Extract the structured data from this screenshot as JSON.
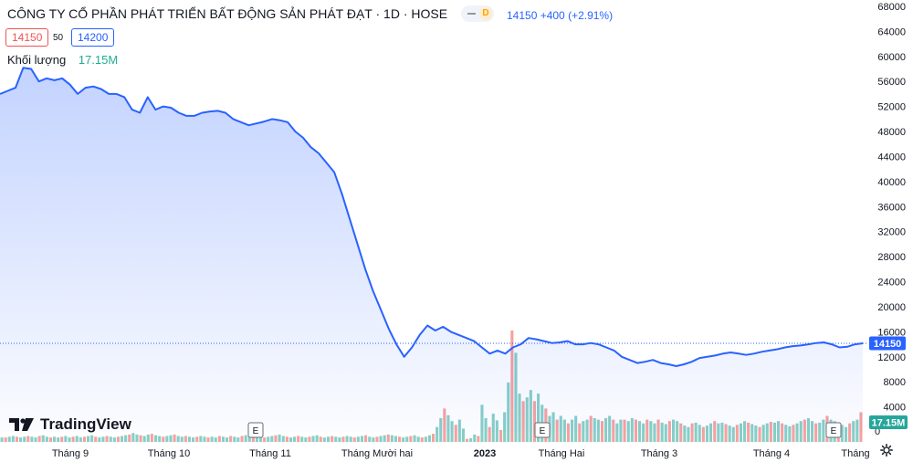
{
  "header": {
    "title": "CÔNG TY CỔ PHẦN PHÁT TRIỂN BẤT ĐỘNG SẢN PHÁT ĐẠT · 1D · HOSE",
    "interval_badge": "D",
    "quote": "14150 +400 (+2.91%)"
  },
  "bid_price": "14150",
  "spread": "50",
  "ask_price": "14200",
  "volume_legend": {
    "label": "Khối lượng",
    "value": "17.15M"
  },
  "logo_text": "TradingView",
  "price_tag": "14150",
  "volume_tag": "17.15M",
  "colors": {
    "line": "#2962ff",
    "up": "#26a69a",
    "down": "#ef5350",
    "tag": "#2962ff",
    "vol_tag": "#26a69a"
  },
  "chart_data": [
    {
      "type": "area",
      "x_ticks": [
        "Tháng 9",
        "Tháng 10",
        "Tháng 11",
        "Tháng Mười hai",
        "2023",
        "Tháng Hai",
        "Tháng 3",
        "Tháng 4",
        "Tháng"
      ],
      "y_ticks": [
        "68000",
        "64000",
        "60000",
        "56000",
        "52000",
        "48000",
        "44000",
        "40000",
        "36000",
        "32000",
        "28000",
        "24000",
        "20000",
        "16000",
        "12000",
        "8000",
        "4000"
      ],
      "ylim": [
        0,
        68000
      ],
      "last_value": 14150,
      "values": [
        54000,
        54500,
        55000,
        58200,
        58000,
        56000,
        56500,
        56200,
        56500,
        55500,
        54000,
        55000,
        55200,
        54800,
        54000,
        54000,
        53500,
        51500,
        51000,
        53500,
        51500,
        52000,
        51800,
        51000,
        50500,
        50500,
        51000,
        51200,
        51300,
        51000,
        50000,
        49500,
        49000,
        49300,
        49600,
        50000,
        49800,
        49500,
        48000,
        47000,
        45500,
        44500,
        43000,
        41500,
        38000,
        34000,
        30000,
        26000,
        22500,
        19500,
        16500,
        14000,
        12000,
        13500,
        15500,
        17000,
        16200,
        16800,
        16000,
        15500,
        15000,
        14500,
        13500,
        12500,
        13000,
        12500,
        13500,
        14000,
        15000,
        14800,
        14500,
        14200,
        14300,
        14500,
        14000,
        14000,
        14200,
        14000,
        13500,
        13000,
        12000,
        11500,
        11000,
        11200,
        11500,
        11000,
        10800,
        10500,
        10800,
        11200,
        11800,
        12000,
        12200,
        12500,
        12700,
        12500,
        12300,
        12500,
        12800,
        13000,
        13200,
        13500,
        13700,
        13800,
        14000,
        14200,
        14300,
        14000,
        13500,
        13600,
        14000,
        14150
      ]
    },
    {
      "type": "bar",
      "name": "Khối lượng",
      "last_value": "17.15M",
      "values": [
        0.6,
        0.6,
        0.7,
        0.8,
        0.7,
        0.6,
        0.7,
        0.8,
        0.7,
        0.6,
        0.8,
        0.9,
        0.7,
        0.6,
        0.7,
        0.6,
        0.7,
        0.8,
        0.6,
        0.7,
        0.8,
        0.6,
        0.7,
        0.8,
        0.9,
        0.7,
        0.6,
        0.7,
        0.8,
        0.7,
        0.6,
        0.7,
        0.8,
        0.9,
        1.0,
        1.2,
        1.0,
        0.9,
        0.8,
        1.0,
        1.1,
        0.9,
        0.8,
        0.7,
        0.8,
        0.9,
        1.0,
        0.8,
        0.7,
        0.8,
        0.7,
        0.6,
        0.7,
        0.8,
        0.7,
        0.6,
        0.7,
        0.6,
        0.8,
        0.7,
        0.6,
        0.8,
        0.7,
        0.6,
        0.8,
        0.9,
        0.7,
        0.6,
        0.8,
        0.7,
        0.6,
        0.7,
        0.8,
        0.9,
        1.0,
        0.8,
        0.7,
        0.6,
        0.7,
        0.8,
        0.7,
        0.6,
        0.7,
        0.8,
        0.9,
        0.7,
        0.6,
        0.7,
        0.8,
        0.7,
        0.6,
        0.7,
        0.8,
        0.7,
        0.6,
        0.7,
        0.8,
        0.9,
        0.7,
        0.6,
        0.7,
        0.8,
        0.9,
        1.0,
        0.9,
        0.8,
        0.7,
        0.6,
        0.7,
        0.8,
        0.9,
        0.7,
        0.6,
        0.7,
        0.9,
        1.1,
        2.0,
        3.2,
        4.5,
        3.6,
        2.8,
        2.3,
        3.0,
        1.8,
        0.4,
        0.5,
        1.0,
        0.8,
        5.0,
        3.2,
        2.0,
        3.8,
        2.9,
        1.6,
        4.0,
        8.0,
        15.0,
        12.0,
        6.5,
        5.5,
        6.0,
        7.0,
        5.5,
        6.5,
        5.0,
        4.5,
        3.5,
        4.0,
        3.0,
        3.5,
        3.0,
        2.5,
        3.0,
        3.5,
        2.5,
        2.8,
        3.0,
        3.5,
        3.2,
        3.0,
        2.8,
        3.2,
        3.5,
        3.0,
        2.5,
        3.0,
        3.0,
        2.8,
        3.2,
        3.0,
        2.8,
        2.5,
        3.0,
        2.8,
        2.5,
        3.0,
        2.6,
        2.4,
        2.8,
        3.0,
        2.8,
        2.5,
        2.2,
        2.0,
        2.5,
        2.6,
        2.3,
        2.0,
        2.2,
        2.5,
        2.8,
        2.5,
        2.6,
        2.4,
        2.2,
        2.0,
        2.3,
        2.5,
        2.8,
        2.6,
        2.4,
        2.2,
        2.0,
        2.3,
        2.5,
        2.7,
        2.6,
        2.8,
        2.5,
        2.3,
        2.1,
        2.3,
        2.5,
        2.8,
        3.0,
        3.2,
        2.8,
        2.5,
        2.6,
        3.0,
        3.5,
        3.0,
        2.8,
        2.5,
        2.3,
        2.0,
        2.5,
        2.8,
        3.0,
        4.0
      ]
    }
  ]
}
